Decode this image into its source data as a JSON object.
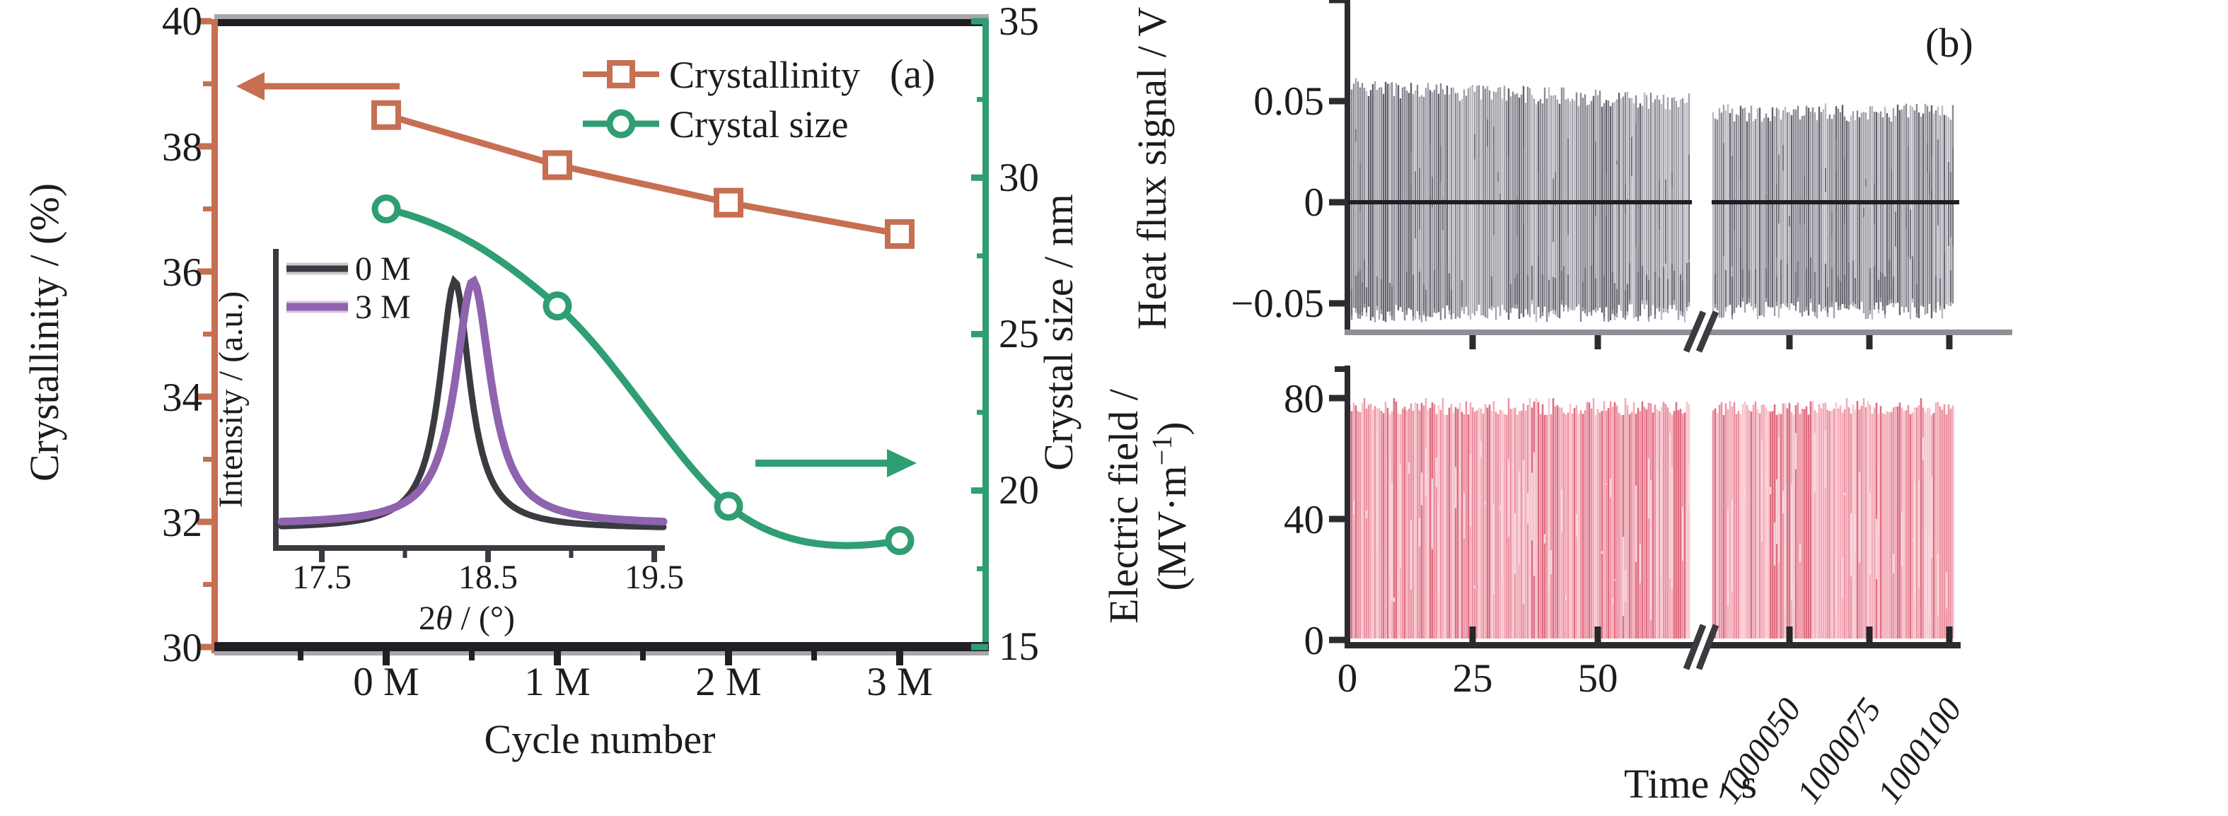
{
  "chart_data": [
    {
      "id": "a_main",
      "type": "line",
      "panel_tag": "(a)",
      "xlabel": "Cycle number",
      "categories": [
        "0 M",
        "1 M",
        "2 M",
        "3 M"
      ],
      "left_axis": {
        "label": "Crystallinity / (%)",
        "color": "#c76f52",
        "tick_labels": [
          "40",
          "38",
          "36",
          "34",
          "32",
          "30"
        ],
        "tick_values": [
          40,
          38,
          36,
          34,
          32,
          30
        ],
        "minor_tick_values": [
          39,
          37,
          35,
          33,
          31
        ],
        "range": [
          30,
          40
        ]
      },
      "right_axis": {
        "label": "Crystal size / nm",
        "color": "#2f9e72",
        "tick_labels": [
          "35",
          "30",
          "25",
          "20",
          "15"
        ],
        "tick_values": [
          35,
          30,
          25,
          20,
          15
        ],
        "minor_tick_values": [
          32.5,
          27.5,
          22.5,
          17.5
        ],
        "range": [
          15,
          35
        ]
      },
      "series": [
        {
          "name": "Crystallinity",
          "axis": "left",
          "marker": "square",
          "color": "#c76f52",
          "values": [
            38.5,
            37.7,
            37.1,
            36.6
          ]
        },
        {
          "name": "Crystal size",
          "axis": "right",
          "marker": "circle",
          "color": "#2f9e72",
          "values": [
            29.0,
            25.9,
            19.5,
            18.4
          ]
        }
      ],
      "legend": {
        "position": "top-right",
        "labels": [
          "Crystallinity",
          "Crystal size"
        ]
      },
      "grid": false
    },
    {
      "id": "a_inset",
      "type": "line",
      "ylabel": "Intensity / (a.u.)",
      "xlabel_parts": {
        "prefix": "2",
        "theta": "θ",
        "suffix": " / (°)"
      },
      "x_tick_labels": [
        "17.5",
        "18.5",
        "19.5"
      ],
      "x_tick_values": [
        17.5,
        18.5,
        19.5
      ],
      "x_minor_tick_values": [
        18.0,
        19.0
      ],
      "x_range": [
        17.2,
        19.55
      ],
      "legend": {
        "position": "top-left",
        "labels": [
          "0 M",
          "3 M"
        ]
      },
      "series": [
        {
          "name": "0 M",
          "color": "#3a3a40",
          "shape": "lorentzian",
          "peak_center": 18.3,
          "peak_hwhm": 0.11
        },
        {
          "name": "3 M",
          "color": "#8f63ad",
          "shape": "lorentzian",
          "peak_center": 18.41,
          "peak_hwhm": 0.13
        }
      ]
    },
    {
      "id": "b_heat_flux",
      "type": "area",
      "panel_tag": "(b)",
      "ylabel": "Heat flux signal / V",
      "y_tick_labels": [
        "0.05",
        "0",
        "−0.05"
      ],
      "y_tick_values": [
        0.05,
        0,
        -0.05
      ],
      "signal": {
        "description": "noisy heat-flux oscillation band around zero",
        "y_envelope_v": [
          -0.055,
          0.063
        ],
        "color": "#8a8a93",
        "zero_line": 0
      }
    },
    {
      "id": "b_electric_field",
      "type": "area",
      "xlabel": "Time / s",
      "ylabel_line1": "Electric field /",
      "ylabel_line2_parts": {
        "prefix": "(MV·m",
        "sup": "−1",
        "suffix": ")"
      },
      "y_tick_labels": [
        "80",
        "40",
        "0"
      ],
      "y_tick_values": [
        80,
        40,
        0
      ],
      "x_tick_labels_before_break": [
        "0",
        "25",
        "50"
      ],
      "x_tick_values_before_break": [
        0,
        25,
        50
      ],
      "x_tick_labels_after_break": [
        "1000050",
        "1000075",
        "1000100"
      ],
      "x_tick_values_after_break": [
        1000050,
        1000075,
        1000100
      ],
      "axis_break": true,
      "signal": {
        "description": "applied AC electric field oscillating 0–78",
        "amplitude_mv_m": 78,
        "color": "#ec92a0"
      }
    }
  ]
}
